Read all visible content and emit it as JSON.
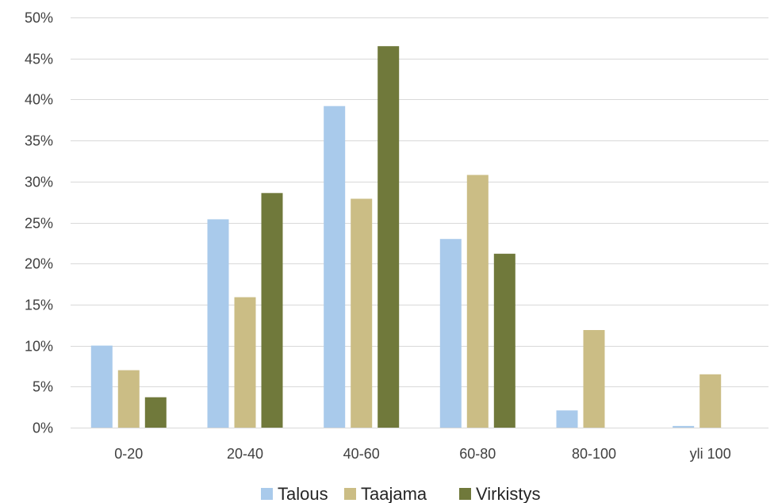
{
  "chart_data": {
    "type": "bar",
    "title": "",
    "xlabel": "",
    "ylabel": "",
    "categories": [
      "0-20",
      "20-40",
      "40-60",
      "60-80",
      "80-100",
      "yli 100"
    ],
    "series": [
      {
        "name": "Talous",
        "color": "#a9caeb",
        "values": [
          10.0,
          25.4,
          39.2,
          23.0,
          2.1,
          0.2
        ]
      },
      {
        "name": "Taajama",
        "color": "#cbbd85",
        "values": [
          7.0,
          15.9,
          27.9,
          30.8,
          11.9,
          6.5
        ]
      },
      {
        "name": "Virkistys",
        "color": "#70793b",
        "values": [
          3.7,
          28.6,
          46.5,
          21.2,
          0,
          0
        ]
      }
    ],
    "ylim": [
      0,
      50
    ],
    "yticks": [
      0,
      5,
      10,
      15,
      20,
      25,
      30,
      35,
      40,
      45,
      50
    ],
    "ytick_format": "percent",
    "grid": true,
    "legend_position": "bottom"
  }
}
